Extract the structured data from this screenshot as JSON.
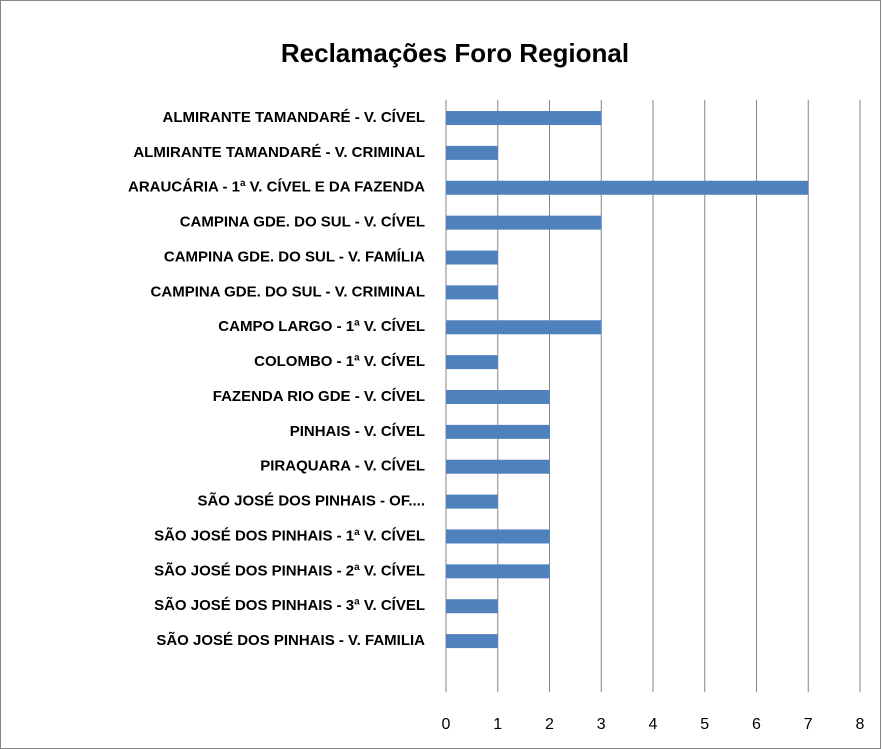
{
  "chart_data": {
    "type": "bar",
    "orientation": "horizontal",
    "title": "Reclamações Foro Regional",
    "categories": [
      "ALMIRANTE TAMANDARÉ - V. CÍVEL",
      "ALMIRANTE TAMANDARÉ - V. CRIMINAL",
      "ARAUCÁRIA - 1ª V. CÍVEL E DA FAZENDA",
      "CAMPINA GDE. DO SUL - V. CÍVEL",
      "CAMPINA GDE. DO SUL - V. FAMÍLIA",
      "CAMPINA GDE. DO SUL - V. CRIMINAL",
      "CAMPO LARGO - 1ª V. CÍVEL",
      "COLOMBO - 1ª V. CÍVEL",
      "FAZENDA RIO GDE - V. CÍVEL",
      "PINHAIS - V. CÍVEL",
      "PIRAQUARA - V. CÍVEL",
      "SÃO JOSÉ DOS PINHAIS - OF....",
      "SÃO JOSÉ DOS PINHAIS - 1ª V. CÍVEL",
      "SÃO JOSÉ DOS PINHAIS - 2ª V. CÍVEL",
      "SÃO JOSÉ DOS PINHAIS - 3ª V. CÍVEL",
      "SÃO JOSÉ DOS PINHAIS - V. FAMILIA"
    ],
    "values": [
      3,
      1,
      7,
      3,
      1,
      1,
      3,
      1,
      2,
      2,
      2,
      1,
      2,
      2,
      1,
      1
    ],
    "color": "#4f81bd",
    "xlim": [
      0,
      8
    ],
    "xticks": [
      0,
      1,
      2,
      3,
      4,
      5,
      6,
      7,
      8
    ],
    "grid": true
  }
}
